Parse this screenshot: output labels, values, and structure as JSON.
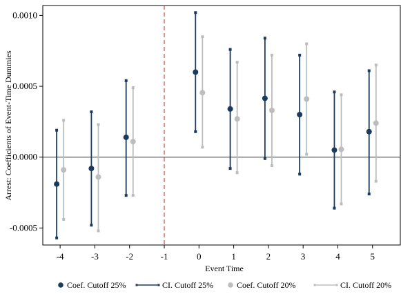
{
  "chart_data": {
    "type": "scatter",
    "xlabel": "Event Time",
    "ylabel": "Arrest: Coefficients of Event-Time Dummies",
    "x_ticks": [
      -4,
      -3,
      -2,
      -1,
      0,
      1,
      2,
      3,
      4,
      5
    ],
    "x_tick_labels": [
      "-4",
      "-3",
      "-2",
      "-1",
      "0",
      "1",
      "2",
      "3",
      "4",
      "5"
    ],
    "y_ticks": [
      -0.0005,
      0.0,
      0.0005,
      0.001
    ],
    "y_tick_labels": [
      "-0.0005",
      "0.0000",
      "0.0005",
      "0.0010"
    ],
    "xlim": [
      -4.5,
      5.8
    ],
    "ylim": [
      -0.00062,
      0.00107
    ],
    "reference_line_y": 0,
    "event_line_x": -1,
    "grid": false,
    "legend_position": "bottom",
    "series": [
      {
        "name": "Coef. Cutoff 25%",
        "ci_name": "CI. Cutoff 25%",
        "color": "#1b3a5c",
        "offset": -0.1,
        "x": [
          -4,
          -3,
          -2,
          0,
          1,
          2,
          3,
          4,
          5
        ],
        "coef": [
          -0.00019,
          -8e-05,
          0.00014,
          0.0006,
          0.00034,
          0.000415,
          0.0003,
          5e-05,
          0.00018
        ],
        "ci_low": [
          -0.00057,
          -0.00048,
          -0.00027,
          0.00018,
          -8e-05,
          -1e-05,
          -0.00012,
          -0.00036,
          -0.00026
        ],
        "ci_high": [
          0.00019,
          0.00032,
          0.00054,
          0.00102,
          0.00076,
          0.00084,
          0.00072,
          0.00046,
          0.00061
        ]
      },
      {
        "name": "Coef. Cutoff 20%",
        "ci_name": "CI. Cutoff 20%",
        "color": "#bdbdbd",
        "offset": 0.1,
        "x": [
          -4,
          -3,
          -2,
          0,
          1,
          2,
          3,
          4,
          5
        ],
        "coef": [
          -9e-05,
          -0.00014,
          0.00011,
          0.000455,
          0.00027,
          0.00033,
          0.00041,
          5.5e-05,
          0.00024
        ],
        "ci_low": [
          -0.00044,
          -0.00052,
          -0.00027,
          7e-05,
          -0.00011,
          -6e-05,
          2e-05,
          -0.00033,
          -0.00017
        ],
        "ci_high": [
          0.00026,
          0.00023,
          0.00049,
          0.00085,
          0.00067,
          0.00072,
          0.0008,
          0.00044,
          0.00065
        ]
      }
    ]
  },
  "legend": {
    "items": [
      {
        "label": "Coef. Cutoff 25%",
        "kind": "dot",
        "color": "#1b3a5c"
      },
      {
        "label": "CI. Cutoff 25%",
        "kind": "line",
        "color": "#1b3a5c"
      },
      {
        "label": "Coef. Cutoff 20%",
        "kind": "dot",
        "color": "#bdbdbd"
      },
      {
        "label": "CI. Cutoff 20%",
        "kind": "line",
        "color": "#bdbdbd"
      }
    ]
  }
}
